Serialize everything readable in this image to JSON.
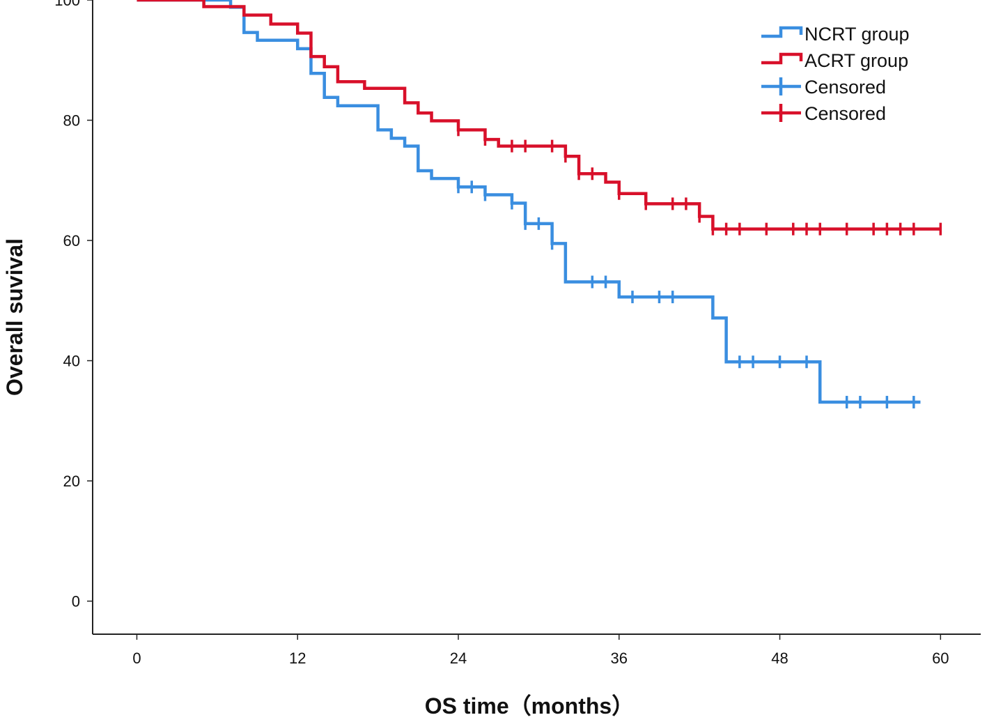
{
  "colors": {
    "ncrt": "#3a8ee0",
    "acrt": "#d8102a",
    "axis": "#222222"
  },
  "chart_data": {
    "type": "line",
    "subtype": "kaplan-meier",
    "title": "",
    "xlabel": "OS time（months）",
    "ylabel": "Overall suvival",
    "xlim": [
      -3.3,
      63
    ],
    "ylim": [
      -5.5,
      100
    ],
    "xticks": [
      "0",
      "12",
      "24",
      "36",
      "48",
      "60"
    ],
    "yticks": [
      "0",
      "20",
      "40",
      "60",
      "80",
      "100"
    ],
    "legend_position": "top-right",
    "legend": [
      {
        "label": "NCRT group",
        "series": "ncrt",
        "style": "line"
      },
      {
        "label": "ACRT group",
        "series": "acrt",
        "style": "line"
      },
      {
        "label": "Censored",
        "series": "ncrt",
        "style": "censor"
      },
      {
        "label": "Censored",
        "series": "acrt",
        "style": "censor"
      }
    ],
    "series": [
      {
        "name": "NCRT group",
        "key": "ncrt",
        "steps": [
          [
            0,
            100
          ],
          [
            7,
            98.8
          ],
          [
            8,
            94.6
          ],
          [
            9,
            93.3
          ],
          [
            12,
            91.9
          ],
          [
            13,
            87.8
          ],
          [
            14,
            83.8
          ],
          [
            15,
            82.4
          ],
          [
            18,
            78.4
          ],
          [
            19,
            77
          ],
          [
            20,
            75.7
          ],
          [
            21,
            71.6
          ],
          [
            22,
            70.3
          ],
          [
            24,
            68.9
          ],
          [
            26,
            67.6
          ],
          [
            28,
            66.2
          ],
          [
            29,
            62.8
          ],
          [
            31,
            59.5
          ],
          [
            32,
            53.1
          ],
          [
            36,
            50.6
          ],
          [
            43,
            47.1
          ],
          [
            44,
            39.8
          ],
          [
            51,
            33.1
          ],
          [
            58.5,
            33.1
          ]
        ],
        "censored": [
          [
            24,
            68.9
          ],
          [
            25,
            68.9
          ],
          [
            26,
            67.6
          ],
          [
            28,
            66.2
          ],
          [
            29,
            62.8
          ],
          [
            30,
            62.8
          ],
          [
            31,
            59.5
          ],
          [
            34,
            53.1
          ],
          [
            35,
            53.1
          ],
          [
            37,
            50.6
          ],
          [
            39,
            50.6
          ],
          [
            40,
            50.6
          ],
          [
            45,
            39.8
          ],
          [
            46,
            39.8
          ],
          [
            48,
            39.8
          ],
          [
            50,
            39.8
          ],
          [
            53,
            33.1
          ],
          [
            54,
            33.1
          ],
          [
            56,
            33.1
          ],
          [
            58,
            33.1
          ]
        ]
      },
      {
        "name": "ACRT group",
        "key": "acrt",
        "steps": [
          [
            0,
            100
          ],
          [
            5,
            98.9
          ],
          [
            8,
            97.5
          ],
          [
            10,
            96
          ],
          [
            12,
            94.5
          ],
          [
            13,
            90.6
          ],
          [
            14,
            88.9
          ],
          [
            15,
            86.4
          ],
          [
            17,
            85.3
          ],
          [
            20,
            82.9
          ],
          [
            21,
            81.2
          ],
          [
            22,
            79.9
          ],
          [
            24,
            78.4
          ],
          [
            26,
            76.8
          ],
          [
            27,
            75.7
          ],
          [
            32,
            74
          ],
          [
            33,
            71.1
          ],
          [
            35,
            69.7
          ],
          [
            36,
            67.8
          ],
          [
            38,
            66.1
          ],
          [
            42,
            64
          ],
          [
            43,
            61.9
          ],
          [
            60,
            61.9
          ]
        ],
        "censored": [
          [
            24,
            78.4
          ],
          [
            26,
            76.8
          ],
          [
            28,
            75.7
          ],
          [
            29,
            75.7
          ],
          [
            31,
            75.7
          ],
          [
            32,
            74
          ],
          [
            33,
            71.1
          ],
          [
            34,
            71.1
          ],
          [
            36,
            67.8
          ],
          [
            38,
            66.1
          ],
          [
            40,
            66.1
          ],
          [
            41,
            66.1
          ],
          [
            42,
            64
          ],
          [
            43,
            61.9
          ],
          [
            44,
            61.9
          ],
          [
            45,
            61.9
          ],
          [
            47,
            61.9
          ],
          [
            49,
            61.9
          ],
          [
            50,
            61.9
          ],
          [
            51,
            61.9
          ],
          [
            53,
            61.9
          ],
          [
            55,
            61.9
          ],
          [
            56,
            61.9
          ],
          [
            57,
            61.9
          ],
          [
            58,
            61.9
          ],
          [
            60,
            61.9
          ]
        ]
      }
    ]
  }
}
